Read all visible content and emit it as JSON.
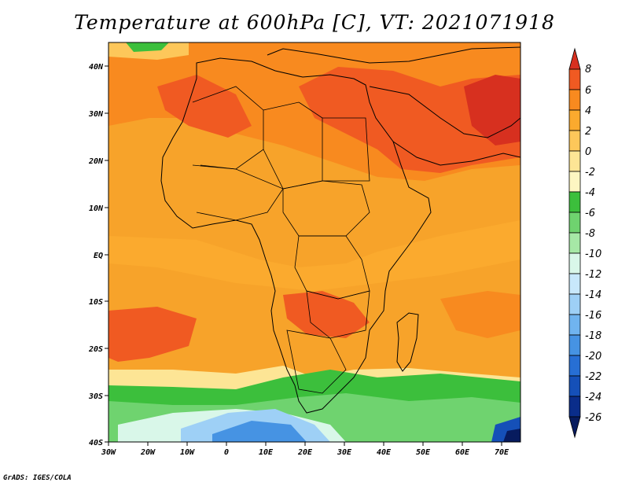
{
  "title": "Temperature at 600hPa [C], VT: 2021071918",
  "credit": "GrADS: IGES/COLA",
  "map": {
    "lon_range": [
      -30,
      75
    ],
    "lat_range": [
      -40,
      45
    ],
    "lon_labels": [
      "30W",
      "20W",
      "10W",
      "0",
      "10E",
      "20E",
      "30E",
      "40E",
      "50E",
      "60E",
      "70E"
    ],
    "lat_labels": [
      "40N",
      "30N",
      "20N",
      "10N",
      "EQ",
      "10S",
      "20S",
      "30S",
      "40S"
    ]
  },
  "colorbar": {
    "labels": [
      "8",
      "6",
      "4",
      "2",
      "0",
      "-2",
      "-4",
      "-6",
      "-8",
      "-10",
      "-12",
      "-14",
      "-16",
      "-18",
      "-20",
      "-22",
      "-24",
      "-26"
    ],
    "colors": [
      "#d7301f",
      "#f05a22",
      "#f88a1f",
      "#fbaa2e",
      "#fdc75a",
      "#fde595",
      "#fdf6c2",
      "#3cbf3c",
      "#6fd36f",
      "#a6e8a6",
      "#d9f7e9",
      "#c8e8fb",
      "#9ed0f6",
      "#70b4ef",
      "#4693e3",
      "#276fd4",
      "#1550b8",
      "#0a2d8a",
      "#071b5e"
    ]
  }
}
